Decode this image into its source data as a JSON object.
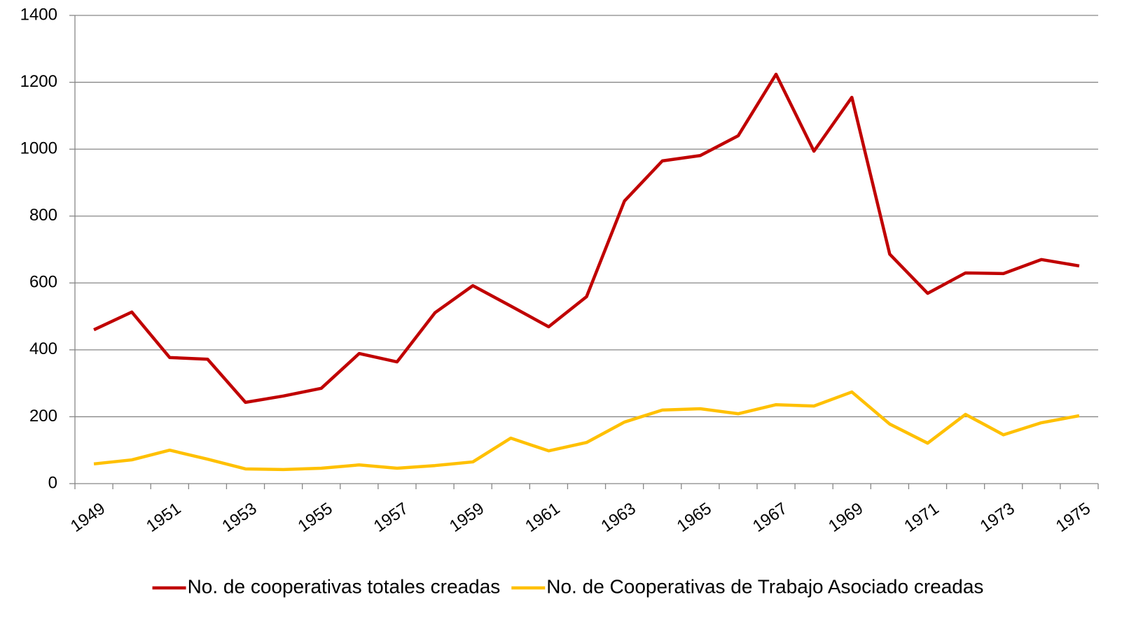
{
  "chart_data": {
    "type": "line",
    "categories": [
      "1949",
      null,
      "1951",
      null,
      "1953",
      null,
      "1955",
      null,
      "1957",
      null,
      "1959",
      null,
      "1961",
      null,
      "1963",
      null,
      "1965",
      null,
      "1967",
      null,
      "1969",
      null,
      "1971",
      null,
      "1973",
      null,
      "1975"
    ],
    "series": [
      {
        "name": "No. de cooperativas totales creadas",
        "color": "#c00000",
        "values": [
          460,
          513,
          377,
          372,
          243,
          262,
          285,
          389,
          364,
          511,
          592,
          531,
          469,
          559,
          845,
          965,
          981,
          1040,
          1224,
          994,
          1155,
          686,
          569,
          630,
          628,
          670,
          651
        ]
      },
      {
        "name": "No. de Cooperativas de Trabajo Asociado creadas",
        "color": "#ffc000",
        "values": [
          59,
          71,
          100,
          73,
          44,
          42,
          46,
          56,
          46,
          54,
          65,
          136,
          98,
          123,
          184,
          220,
          224,
          209,
          236,
          232,
          274,
          178,
          121,
          207,
          146,
          182,
          203
        ]
      }
    ],
    "ylim": [
      0,
      1400
    ],
    "yticks": [
      0,
      200,
      400,
      600,
      800,
      1000,
      1200,
      1400
    ],
    "grid": true,
    "legend": "bottom"
  }
}
